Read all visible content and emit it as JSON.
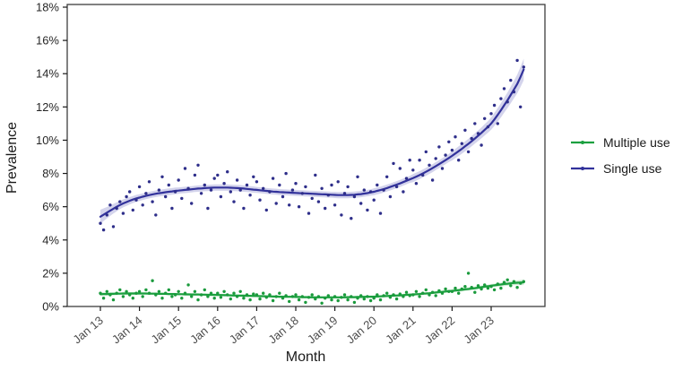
{
  "figure": {
    "background": "#ffffff",
    "panel_border_color": "#3d3d3d",
    "tick_color": "#1a1a1a",
    "y_label_color": "#262626",
    "x_label_color": "#4d4d4d"
  },
  "axes": {
    "y_title": "Prevalence",
    "x_title": "Month",
    "y_ticks": [
      0,
      2,
      4,
      6,
      8,
      10,
      12,
      14,
      16,
      18
    ],
    "y_tick_suffix": "%",
    "x_ticks": [
      {
        "month_index": 0,
        "label": "Jan 13"
      },
      {
        "month_index": 12,
        "label": "Jan 14"
      },
      {
        "month_index": 24,
        "label": "Jan 15"
      },
      {
        "month_index": 36,
        "label": "Jan 16"
      },
      {
        "month_index": 48,
        "label": "Jan 17"
      },
      {
        "month_index": 60,
        "label": "Jan 18"
      },
      {
        "month_index": 72,
        "label": "Jan 19"
      },
      {
        "month_index": 84,
        "label": "Jan 20"
      },
      {
        "month_index": 96,
        "label": "Jan 21"
      },
      {
        "month_index": 108,
        "label": "Jan 22"
      },
      {
        "month_index": 120,
        "label": "Jan 23"
      }
    ]
  },
  "legend": {
    "items": [
      {
        "label": "Multiple use",
        "color": "#1ba03f"
      },
      {
        "label": "Single use",
        "color": "#32329b"
      }
    ]
  },
  "chart_data": {
    "type": "scatter",
    "subtype": "monthly points with loess smooth and confidence ribbon",
    "title": "",
    "xlabel": "Month",
    "ylabel": "Prevalence",
    "x_unit": "month",
    "x_start": "Jan 2013",
    "x_end": "Nov 2023",
    "y_range": [
      0,
      18
    ],
    "y_unit": "percent",
    "grid": "off",
    "legend_position": "right",
    "series": [
      {
        "name": "Single use",
        "color": "#32329b",
        "point_color": "#2e2e8a",
        "ribbon_color": "#b0b0dd",
        "points": [
          5.0,
          4.6,
          5.5,
          6.1,
          4.8,
          5.9,
          6.3,
          5.6,
          6.6,
          6.9,
          5.8,
          6.4,
          7.2,
          6.1,
          6.8,
          7.5,
          6.3,
          5.5,
          7.0,
          7.8,
          6.6,
          7.3,
          5.9,
          6.9,
          7.6,
          6.5,
          8.3,
          7.1,
          6.2,
          7.9,
          8.5,
          6.8,
          7.3,
          5.9,
          7.0,
          7.7,
          7.9,
          6.6,
          7.4,
          8.1,
          6.9,
          6.3,
          7.6,
          7.0,
          5.9,
          7.3,
          6.7,
          7.8,
          7.5,
          6.4,
          7.1,
          5.8,
          6.9,
          7.7,
          6.2,
          7.3,
          6.6,
          8.0,
          6.1,
          7.0,
          7.4,
          6.0,
          6.8,
          7.2,
          5.6,
          6.5,
          7.9,
          6.3,
          7.1,
          5.9,
          6.7,
          7.3,
          6.1,
          7.5,
          5.5,
          6.8,
          7.2,
          5.3,
          6.6,
          7.8,
          6.2,
          7.0,
          5.8,
          6.9,
          6.4,
          7.3,
          5.6,
          7.0,
          7.8,
          6.6,
          8.6,
          7.2,
          8.3,
          6.9,
          7.7,
          8.8,
          8.2,
          7.4,
          8.8,
          7.9,
          9.3,
          8.5,
          7.6,
          8.9,
          9.6,
          8.3,
          9.1,
          9.9,
          9.4,
          10.2,
          8.8,
          9.8,
          10.6,
          9.3,
          10.1,
          11.0,
          10.4,
          9.7,
          11.3,
          10.8,
          11.6,
          12.1,
          11.0,
          12.5,
          13.1,
          12.3,
          13.6,
          12.9,
          14.8,
          12.0,
          14.4
        ],
        "trend": [
          5.4,
          5.52,
          5.64,
          5.76,
          5.88,
          6.0,
          6.1,
          6.2,
          6.28,
          6.36,
          6.43,
          6.5,
          6.55,
          6.6,
          6.65,
          6.7,
          6.74,
          6.78,
          6.81,
          6.84,
          6.87,
          6.9,
          6.92,
          6.95,
          6.97,
          6.99,
          7.01,
          7.03,
          7.05,
          7.07,
          7.09,
          7.1,
          7.12,
          7.13,
          7.14,
          7.15,
          7.15,
          7.15,
          7.15,
          7.15,
          7.14,
          7.13,
          7.12,
          7.11,
          7.09,
          7.07,
          7.05,
          7.03,
          7.01,
          6.99,
          6.97,
          6.95,
          6.93,
          6.91,
          6.9,
          6.88,
          6.87,
          6.86,
          6.85,
          6.84,
          6.83,
          6.82,
          6.81,
          6.8,
          6.79,
          6.78,
          6.77,
          6.76,
          6.75,
          6.74,
          6.73,
          6.72,
          6.71,
          6.7,
          6.7,
          6.7,
          6.7,
          6.71,
          6.72,
          6.74,
          6.76,
          6.79,
          6.82,
          6.86,
          6.9,
          6.95,
          7.0,
          7.06,
          7.12,
          7.19,
          7.26,
          7.33,
          7.4,
          7.48,
          7.56,
          7.64,
          7.72,
          7.81,
          7.9,
          8.0,
          8.1,
          8.21,
          8.32,
          8.44,
          8.56,
          8.68,
          8.8,
          8.93,
          9.06,
          9.2,
          9.34,
          9.48,
          9.63,
          9.78,
          9.94,
          10.1,
          10.27,
          10.44,
          10.62,
          10.8,
          11.0,
          11.25,
          11.52,
          11.8,
          12.1,
          12.4,
          12.72,
          13.05,
          13.38,
          13.8,
          14.25
        ],
        "ribbon_halfwidth": [
          0.42,
          0.38,
          0.34,
          0.31,
          0.29,
          0.27,
          0.25,
          0.24,
          0.23,
          0.22,
          0.21,
          0.21,
          0.2,
          0.2,
          0.2,
          0.2,
          0.2,
          0.2,
          0.2,
          0.2,
          0.2,
          0.2,
          0.2,
          0.2,
          0.19,
          0.19,
          0.19,
          0.19,
          0.19,
          0.19,
          0.19,
          0.19,
          0.19,
          0.19,
          0.19,
          0.19,
          0.19,
          0.19,
          0.19,
          0.19,
          0.19,
          0.19,
          0.19,
          0.19,
          0.19,
          0.19,
          0.19,
          0.19,
          0.18,
          0.18,
          0.18,
          0.18,
          0.18,
          0.18,
          0.18,
          0.18,
          0.18,
          0.18,
          0.18,
          0.18,
          0.18,
          0.18,
          0.18,
          0.18,
          0.18,
          0.18,
          0.18,
          0.18,
          0.18,
          0.18,
          0.18,
          0.18,
          0.19,
          0.19,
          0.19,
          0.19,
          0.19,
          0.19,
          0.19,
          0.19,
          0.19,
          0.19,
          0.19,
          0.19,
          0.21,
          0.21,
          0.21,
          0.21,
          0.21,
          0.21,
          0.21,
          0.21,
          0.21,
          0.21,
          0.21,
          0.21,
          0.24,
          0.24,
          0.24,
          0.24,
          0.24,
          0.24,
          0.24,
          0.24,
          0.24,
          0.24,
          0.24,
          0.24,
          0.28,
          0.28,
          0.29,
          0.29,
          0.3,
          0.3,
          0.31,
          0.31,
          0.32,
          0.33,
          0.34,
          0.35,
          0.37,
          0.39,
          0.41,
          0.43,
          0.45,
          0.47,
          0.5,
          0.53,
          0.56,
          0.6,
          0.65
        ]
      },
      {
        "name": "Multiple use",
        "color": "#1ba03f",
        "point_color": "#1a9a3c",
        "ribbon_color": "#a5d9b0",
        "points": [
          0.8,
          0.5,
          0.9,
          0.7,
          0.4,
          0.8,
          1.0,
          0.6,
          0.9,
          0.7,
          0.5,
          0.8,
          0.9,
          0.6,
          1.0,
          0.8,
          1.55,
          0.7,
          0.9,
          0.5,
          0.8,
          1.0,
          0.6,
          0.7,
          0.9,
          0.5,
          0.8,
          1.3,
          0.6,
          0.9,
          0.4,
          0.7,
          1.0,
          0.6,
          0.8,
          0.5,
          0.8,
          0.55,
          0.9,
          0.7,
          0.45,
          0.8,
          0.6,
          0.9,
          0.5,
          0.7,
          0.4,
          0.75,
          0.7,
          0.45,
          0.8,
          0.55,
          0.7,
          0.35,
          0.6,
          0.8,
          0.5,
          0.65,
          0.3,
          0.6,
          0.7,
          0.4,
          0.6,
          0.25,
          0.55,
          0.7,
          0.45,
          0.6,
          0.2,
          0.5,
          0.65,
          0.4,
          0.6,
          0.35,
          0.55,
          0.7,
          0.4,
          0.6,
          0.25,
          0.5,
          0.65,
          0.45,
          0.6,
          0.35,
          0.5,
          0.7,
          0.4,
          0.65,
          0.8,
          0.55,
          0.7,
          0.45,
          0.75,
          0.6,
          0.85,
          0.65,
          0.7,
          0.9,
          0.6,
          0.8,
          1.0,
          0.7,
          0.85,
          0.65,
          0.95,
          0.8,
          1.05,
          0.9,
          0.9,
          1.1,
          0.8,
          1.05,
          1.2,
          2.0,
          1.15,
          0.85,
          1.25,
          1.05,
          1.3,
          1.1,
          1.2,
          1.0,
          1.35,
          1.1,
          1.45,
          1.6,
          1.25,
          1.5,
          1.15,
          1.4,
          1.5
        ],
        "trend": [
          0.74,
          0.75,
          0.75,
          0.76,
          0.76,
          0.77,
          0.77,
          0.78,
          0.78,
          0.78,
          0.78,
          0.78,
          0.78,
          0.78,
          0.78,
          0.77,
          0.77,
          0.77,
          0.76,
          0.76,
          0.76,
          0.75,
          0.75,
          0.75,
          0.74,
          0.74,
          0.73,
          0.73,
          0.72,
          0.72,
          0.72,
          0.71,
          0.71,
          0.7,
          0.7,
          0.7,
          0.69,
          0.69,
          0.68,
          0.68,
          0.67,
          0.66,
          0.66,
          0.65,
          0.65,
          0.64,
          0.64,
          0.63,
          0.63,
          0.62,
          0.62,
          0.61,
          0.61,
          0.6,
          0.6,
          0.59,
          0.59,
          0.58,
          0.58,
          0.58,
          0.57,
          0.57,
          0.56,
          0.56,
          0.56,
          0.55,
          0.55,
          0.55,
          0.55,
          0.55,
          0.55,
          0.55,
          0.55,
          0.55,
          0.55,
          0.55,
          0.56,
          0.56,
          0.56,
          0.57,
          0.57,
          0.58,
          0.58,
          0.59,
          0.59,
          0.6,
          0.61,
          0.62,
          0.63,
          0.64,
          0.65,
          0.66,
          0.67,
          0.68,
          0.7,
          0.71,
          0.72,
          0.74,
          0.75,
          0.77,
          0.78,
          0.8,
          0.82,
          0.84,
          0.86,
          0.88,
          0.9,
          0.92,
          0.94,
          0.96,
          0.98,
          1.0,
          1.03,
          1.05,
          1.08,
          1.1,
          1.13,
          1.16,
          1.19,
          1.22,
          1.25,
          1.27,
          1.3,
          1.32,
          1.35,
          1.37,
          1.39,
          1.41,
          1.43,
          1.44,
          1.45
        ],
        "ribbon_halfwidth": [
          0.11,
          0.1,
          0.1,
          0.09,
          0.09,
          0.09,
          0.08,
          0.08,
          0.08,
          0.08,
          0.08,
          0.08,
          0.07,
          0.07,
          0.07,
          0.07,
          0.07,
          0.07,
          0.07,
          0.07,
          0.07,
          0.07,
          0.07,
          0.07,
          0.07,
          0.07,
          0.07,
          0.07,
          0.07,
          0.07,
          0.07,
          0.07,
          0.07,
          0.07,
          0.07,
          0.07,
          0.07,
          0.07,
          0.07,
          0.07,
          0.07,
          0.07,
          0.07,
          0.07,
          0.07,
          0.07,
          0.07,
          0.07,
          0.07,
          0.07,
          0.07,
          0.07,
          0.07,
          0.07,
          0.07,
          0.07,
          0.07,
          0.07,
          0.07,
          0.07,
          0.07,
          0.07,
          0.07,
          0.07,
          0.07,
          0.07,
          0.07,
          0.07,
          0.07,
          0.07,
          0.07,
          0.07,
          0.07,
          0.07,
          0.07,
          0.07,
          0.07,
          0.07,
          0.07,
          0.07,
          0.07,
          0.07,
          0.07,
          0.07,
          0.08,
          0.08,
          0.08,
          0.08,
          0.08,
          0.08,
          0.08,
          0.08,
          0.08,
          0.08,
          0.08,
          0.08,
          0.08,
          0.08,
          0.08,
          0.08,
          0.08,
          0.08,
          0.08,
          0.08,
          0.08,
          0.08,
          0.08,
          0.08,
          0.09,
          0.09,
          0.09,
          0.09,
          0.09,
          0.09,
          0.09,
          0.09,
          0.09,
          0.09,
          0.09,
          0.09,
          0.1,
          0.1,
          0.11,
          0.11,
          0.12,
          0.12,
          0.13,
          0.13,
          0.14,
          0.15,
          0.16
        ]
      }
    ]
  }
}
